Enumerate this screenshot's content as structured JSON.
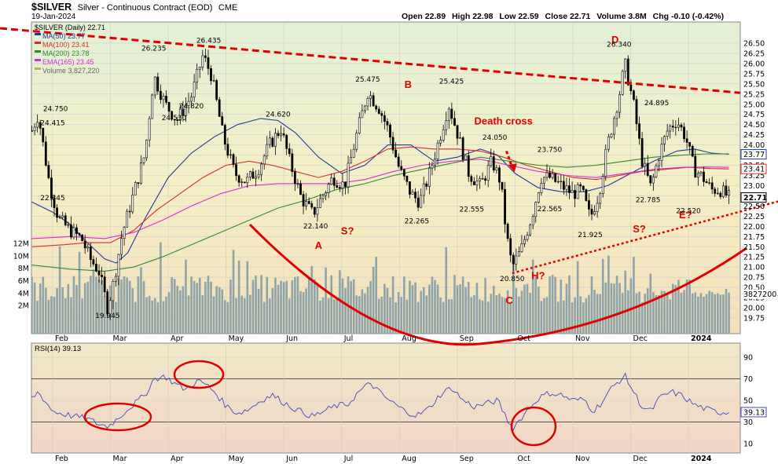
{
  "header": {
    "symbol": "$SILVER",
    "name": "Silver - Continuous Contract (EOD)",
    "exchange": "CME",
    "date": "19-Jan-2024",
    "open_label": "Open",
    "open": "22.89",
    "high_label": "High",
    "high": "22.98",
    "low_label": "Low",
    "low": "22.59",
    "close_label": "Close",
    "close": "22.71",
    "volume_label": "Volume",
    "volume": "3.8M",
    "chg_label": "Chg",
    "chg": "-0.10 (-0.42%)"
  },
  "legend": {
    "main": "$SILVER (Daily) 22.71",
    "ma50": "MA(50) 23.77",
    "ma100": "MA(100) 23.41",
    "ma200": "MA(200) 23.78",
    "ema165": "EMA(165) 23.45",
    "volume": "Volume 3,827,220"
  },
  "rsi_legend": "RSI(14) 39.13",
  "colors": {
    "price_bg": "#f1edbf",
    "rsi_bg": "#f1dcca",
    "ma50": "#1f3a9c",
    "ma100": "#d52d2d",
    "ma200": "#2f8a2f",
    "ema165": "#d92bd9",
    "volume": "#8fa4a8",
    "candle": "#000000",
    "annotation": "#e00000",
    "rsi_line": "#4048c0",
    "rsi_fill": "#6a8fc8"
  },
  "chart_data": {
    "type": "candlestick",
    "x_ticks": [
      "Feb",
      "Mar",
      "Apr",
      "May",
      "Jun",
      "Jul",
      "Aug",
      "Sep",
      "Oct",
      "Nov",
      "Dec",
      "2024"
    ],
    "ylim": [
      19.75,
      26.75
    ],
    "y_ticks": [
      "26.50",
      "26.25",
      "26.00",
      "25.75",
      "25.50",
      "25.25",
      "25.00",
      "24.75",
      "24.50",
      "24.25",
      "24.00",
      "23.75",
      "23.50",
      "23.25",
      "23.00",
      "22.75",
      "22.50",
      "22.25",
      "22.00",
      "21.75",
      "21.50",
      "21.25",
      "21.00",
      "20.75",
      "20.50",
      "20.25",
      "20.00",
      "19.75"
    ],
    "volume_ticks": [
      "12M",
      "10M",
      "8M",
      "6M",
      "4M",
      "2M"
    ],
    "price_labels": [
      {
        "text": "24.415",
        "x": 0.0,
        "y": 24.41
      },
      {
        "text": "24.750",
        "x": 0.05,
        "y": 24.75
      },
      {
        "text": "22.845",
        "x": 0.0,
        "y": 22.84
      },
      {
        "text": "19.945",
        "x": 0.95,
        "y": 19.945
      },
      {
        "text": "26.235",
        "x": 1.75,
        "y": 26.235
      },
      {
        "text": "26.435",
        "x": 2.7,
        "y": 26.435
      },
      {
        "text": "24.820",
        "x": 2.4,
        "y": 24.82
      },
      {
        "text": "24.530",
        "x": 2.1,
        "y": 24.53
      },
      {
        "text": "24.620",
        "x": 3.9,
        "y": 24.62
      },
      {
        "text": "22.140",
        "x": 4.55,
        "y": 22.14
      },
      {
        "text": "25.475",
        "x": 5.45,
        "y": 25.475
      },
      {
        "text": "22.265",
        "x": 6.3,
        "y": 22.265
      },
      {
        "text": "25.425",
        "x": 6.9,
        "y": 25.425
      },
      {
        "text": "22.555",
        "x": 7.25,
        "y": 22.555
      },
      {
        "text": "24.050",
        "x": 7.65,
        "y": 24.05
      },
      {
        "text": "20.850",
        "x": 7.95,
        "y": 20.85
      },
      {
        "text": "23.750",
        "x": 8.6,
        "y": 23.75
      },
      {
        "text": "22.565",
        "x": 8.6,
        "y": 22.565
      },
      {
        "text": "21.925",
        "x": 9.3,
        "y": 21.925
      },
      {
        "text": "26.340",
        "x": 9.8,
        "y": 26.34
      },
      {
        "text": "22.785",
        "x": 10.3,
        "y": 22.785
      },
      {
        "text": "24.895",
        "x": 10.45,
        "y": 24.895
      },
      {
        "text": "22.520",
        "x": 11.0,
        "y": 22.52
      }
    ],
    "right_axis_values": [
      {
        "text": "23.77",
        "y": 23.77
      },
      {
        "text": "23.41",
        "y": 23.41
      },
      {
        "text": "22.71",
        "y": 22.71
      }
    ],
    "volume_last": "3827200",
    "annotations": [
      {
        "text": "A",
        "x": 4.6,
        "y": 21.45
      },
      {
        "text": "S?",
        "x": 5.1,
        "y": 21.8
      },
      {
        "text": "B",
        "x": 6.15,
        "y": 25.4
      },
      {
        "text": "Death cross",
        "x": 7.8,
        "y": 24.5
      },
      {
        "text": "C",
        "x": 7.9,
        "y": 20.1
      },
      {
        "text": "H?",
        "x": 8.4,
        "y": 20.7
      },
      {
        "text": "D",
        "x": 9.73,
        "y": 26.5
      },
      {
        "text": "S?",
        "x": 10.15,
        "y": 21.85
      },
      {
        "text": "E?",
        "x": 10.95,
        "y": 22.2
      }
    ],
    "rsi": {
      "ylim": [
        0,
        100
      ],
      "y_ticks": [
        "90",
        "70",
        "50",
        "30",
        "10"
      ],
      "current": "39.13",
      "overbought": 70,
      "oversold": 30
    }
  }
}
